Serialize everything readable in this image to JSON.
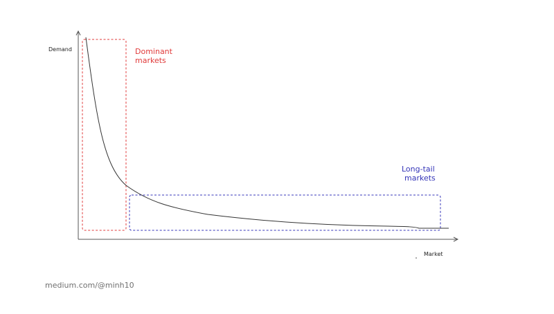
{
  "diagram": {
    "y_axis_label": "Demand",
    "x_axis_label": "Market",
    "dominant_label_line1": "Dominant",
    "dominant_label_line2": "markets",
    "longtail_label_line1": "Long-tail",
    "longtail_label_line2": "markets",
    "footer": "medium.com/@minh10"
  },
  "colors": {
    "dominant": "#e03a3a",
    "longtail": "#3434b8",
    "axis": "#555555",
    "curve": "#333333"
  }
}
